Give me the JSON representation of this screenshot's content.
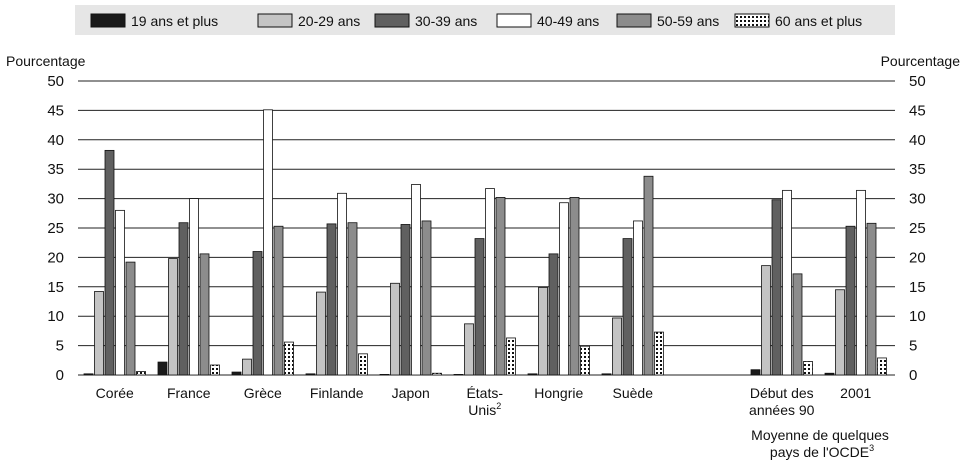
{
  "chart_data": {
    "type": "bar",
    "ylabel_left": "Pourcentage",
    "ylabel_right": "Pourcentage",
    "ylim": [
      0,
      50
    ],
    "yticks": [
      0,
      5,
      10,
      15,
      20,
      25,
      30,
      35,
      40,
      45,
      50
    ],
    "grid": true,
    "legend_position": "top",
    "categories": [
      {
        "label": [
          "Corée"
        ],
        "sup": ""
      },
      {
        "label": [
          "France"
        ],
        "sup": ""
      },
      {
        "label": [
          "Grèce"
        ],
        "sup": ""
      },
      {
        "label": [
          "Finlande"
        ],
        "sup": ""
      },
      {
        "label": [
          "Japon"
        ],
        "sup": ""
      },
      {
        "label": [
          "États-",
          "Unis"
        ],
        "sup": "2"
      },
      {
        "label": [
          "Hongrie"
        ],
        "sup": ""
      },
      {
        "label": [
          "Suède"
        ],
        "sup": ""
      },
      {
        "label": [
          "Début des",
          "années 90"
        ],
        "sup": ""
      },
      {
        "label": [
          "2001"
        ],
        "sup": ""
      }
    ],
    "group_label": {
      "lines": [
        "Moyenne de quelques",
        "pays de l'OCDE"
      ],
      "sup": "3"
    },
    "series": [
      {
        "name": "19 ans et plus",
        "color": "#1a1a1a",
        "pattern": "solid",
        "values": [
          0.2,
          2.2,
          0.5,
          0.2,
          0.1,
          0.1,
          0.2,
          0.2,
          0.9,
          0.3
        ]
      },
      {
        "name": "20-29 ans",
        "color": "#c4c4c4",
        "pattern": "solid",
        "values": [
          14.2,
          19.8,
          2.7,
          14.1,
          15.6,
          8.7,
          14.9,
          9.7,
          18.6,
          14.5
        ]
      },
      {
        "name": "30-39 ans",
        "color": "#606060",
        "pattern": "solid",
        "values": [
          38.2,
          25.9,
          21.0,
          25.7,
          25.6,
          23.2,
          20.6,
          23.2,
          29.8,
          25.3
        ]
      },
      {
        "name": "40-49 ans",
        "color": "#ffffff",
        "pattern": "solid",
        "values": [
          28.0,
          30.0,
          45.1,
          30.9,
          32.4,
          31.7,
          29.3,
          26.2,
          31.4,
          31.4
        ]
      },
      {
        "name": "50-59 ans",
        "color": "#8c8c8c",
        "pattern": "solid",
        "values": [
          19.2,
          20.6,
          25.3,
          25.9,
          26.2,
          30.2,
          30.2,
          33.8,
          17.2,
          25.8
        ]
      },
      {
        "name": "60 ans et plus",
        "color": "#ffffff",
        "pattern": "dots",
        "values": [
          0.6,
          1.7,
          5.6,
          3.6,
          0.3,
          6.3,
          4.9,
          7.3,
          2.3,
          2.9
        ]
      }
    ]
  }
}
